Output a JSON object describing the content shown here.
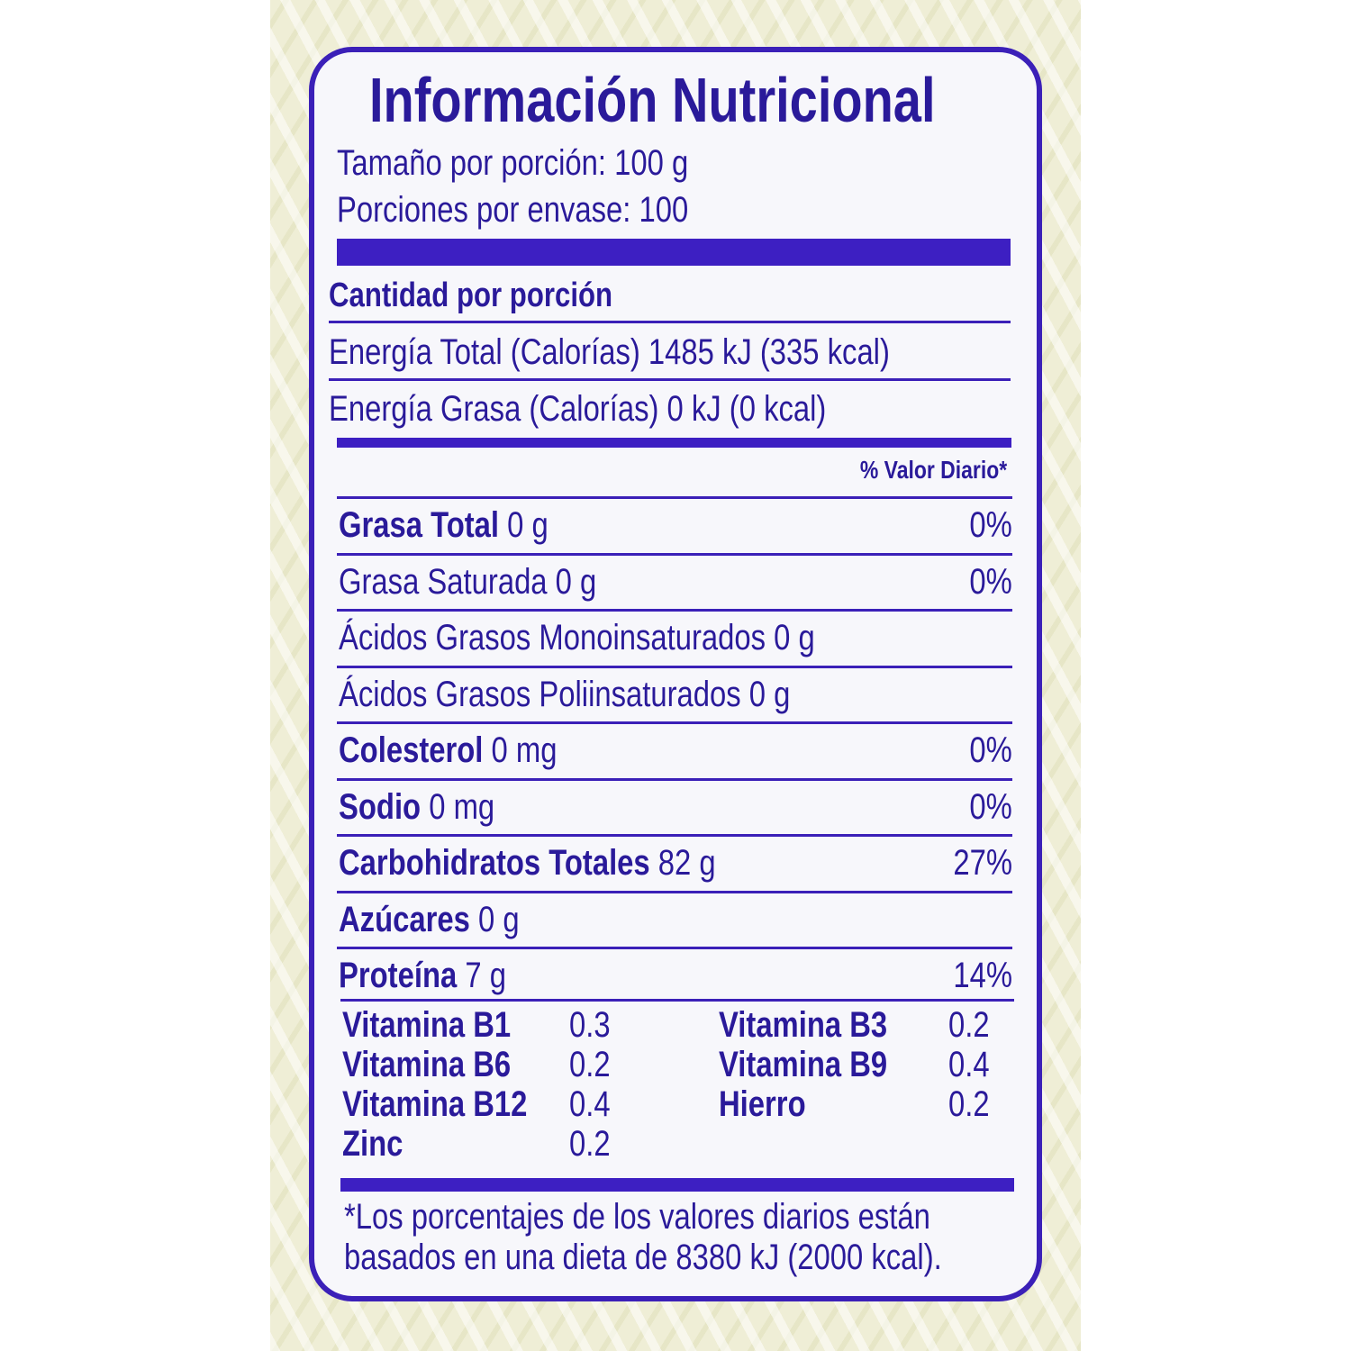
{
  "title": "Información Nutricional",
  "serving_size": "Tamaño por porción: 100 g",
  "servings_per_container": "Porciones por envase: 100",
  "amount_per_serving": "Cantidad por porción",
  "energy_total": "Energía Total (Calorías) 1485 kJ (335 kcal)",
  "energy_fat": "Energía Grasa (Calorías) 0 kJ (0 kcal)",
  "daily_value_header": "% Valor Diario*",
  "nutrients": [
    {
      "name": "Grasa Total",
      "amount": " 0 g",
      "dv": "0%",
      "bold": true
    },
    {
      "name": "Grasa Saturada",
      "amount": " 0 g",
      "dv": "0%",
      "bold": false
    },
    {
      "name": "Ácidos Grasos Monoinsaturados",
      "amount": " 0 g",
      "dv": "",
      "bold": false
    },
    {
      "name": "Ácidos Grasos Poliinsaturados",
      "amount": " 0 g",
      "dv": "",
      "bold": false
    },
    {
      "name": "Colesterol",
      "amount": " 0 mg",
      "dv": "0%",
      "bold": true
    },
    {
      "name": "Sodio",
      "amount": " 0 mg",
      "dv": "0%",
      "bold": true
    },
    {
      "name": "Carbohidratos Totales",
      "amount": " 82 g",
      "dv": "27%",
      "bold": true
    },
    {
      "name": "Azúcares",
      "amount": " 0 g",
      "dv": "",
      "bold": true
    },
    {
      "name": "Proteína",
      "amount": " 7 g",
      "dv": "14%",
      "bold": true
    }
  ],
  "vitamins_left": [
    {
      "name": "Vitamina B1",
      "value": "0.3"
    },
    {
      "name": "Vitamina B6",
      "value": "0.2"
    },
    {
      "name": "Vitamina B12",
      "value": "0.4"
    },
    {
      "name": "Zinc",
      "value": "0.2"
    }
  ],
  "vitamins_right": [
    {
      "name": "Vitamina B3",
      "value": "0.2"
    },
    {
      "name": "Vitamina B9",
      "value": "0.4"
    },
    {
      "name": "Hierro",
      "value": "0.2"
    }
  ],
  "footnote_line1": "*Los porcentajes de los valores diarios están",
  "footnote_line2": "basados en una dieta de 8380 kJ (2000 kcal).",
  "colors": {
    "ink": "#2a1a9a",
    "bar": "#3d1fc2",
    "background": "#efeed6"
  }
}
